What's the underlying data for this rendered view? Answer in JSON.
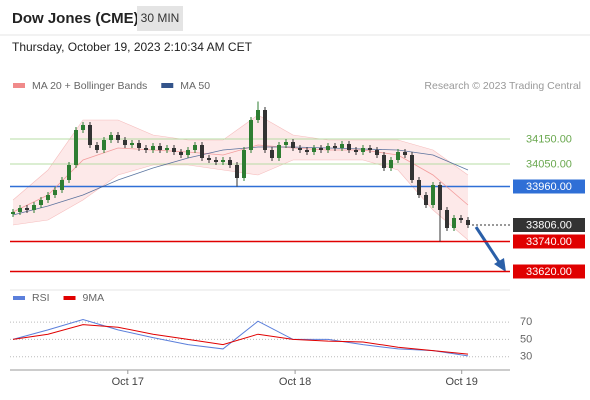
{
  "header": {
    "title": "Dow Jones (CME)",
    "timeframe": "30 MIN",
    "timestamp": "Thursday, October 19, 2023 2:10:34 AM CET"
  },
  "chart_data": [
    {
      "type": "candlestick",
      "source": "Research © 2023 Trading Central",
      "xlim": [
        0,
        71
      ],
      "ylim": [
        33570,
        34310
      ],
      "xticks": [
        {
          "value": 16.4,
          "label": "Oct 17"
        },
        {
          "value": 40.3,
          "label": "Oct 18"
        },
        {
          "value": 64.1,
          "label": "Oct 19"
        }
      ],
      "candles": {
        "up_color": "#2e7d32",
        "down_color": "#333333",
        "x": [
          0,
          1,
          2,
          3,
          4,
          5,
          6,
          7,
          8,
          9,
          10,
          11,
          12,
          13,
          14,
          15,
          16,
          17,
          18,
          19,
          20,
          21,
          22,
          23,
          24,
          25,
          26,
          27,
          28,
          29,
          30,
          31,
          32,
          33,
          34,
          35,
          36,
          37,
          38,
          39,
          40,
          41,
          42,
          43,
          44,
          45,
          46,
          47,
          48,
          49,
          50,
          51,
          52,
          53,
          54,
          55,
          56,
          57,
          58,
          59,
          60,
          61,
          62,
          63,
          64,
          65
        ],
        "open": [
          33850,
          33858,
          33874,
          33866,
          33886,
          33906,
          33926,
          33946,
          33986,
          34046,
          34186,
          34206,
          34126,
          34106,
          34146,
          34166,
          34146,
          34126,
          34134,
          34114,
          34106,
          34122,
          34106,
          34114,
          34098,
          34086,
          34106,
          34126,
          34074,
          34066,
          34058,
          34066,
          34046,
          33994,
          34106,
          34226,
          34266,
          34106,
          34074,
          34126,
          34138,
          34114,
          34106,
          34098,
          34114,
          34106,
          34122,
          34114,
          34130,
          34106,
          34098,
          34114,
          34106,
          34086,
          34034,
          34066,
          34098,
          34086,
          33986,
          33926,
          33886,
          33966,
          33866,
          33794,
          33834,
          33826
        ],
        "high": [
          33870,
          33886,
          33886,
          33898,
          33918,
          33938,
          33958,
          33998,
          34058,
          34198,
          34218,
          34218,
          34138,
          34158,
          34178,
          34178,
          34158,
          34146,
          34146,
          34126,
          34134,
          34134,
          34126,
          34126,
          34110,
          34118,
          34138,
          34138,
          34086,
          34078,
          34078,
          34078,
          34058,
          34118,
          34238,
          34300,
          34278,
          34118,
          34138,
          34150,
          34150,
          34126,
          34118,
          34126,
          34126,
          34134,
          34134,
          34142,
          34142,
          34118,
          34126,
          34126,
          34118,
          34098,
          34078,
          34110,
          34110,
          34098,
          33998,
          33938,
          33978,
          33978,
          33878,
          33846,
          33846,
          33838
        ],
        "low": [
          33838,
          33846,
          33854,
          33854,
          33874,
          33894,
          33914,
          33934,
          33974,
          34034,
          34174,
          34114,
          34094,
          34094,
          34134,
          34134,
          34114,
          34114,
          34102,
          34094,
          34094,
          34094,
          34094,
          34086,
          34074,
          34074,
          34094,
          34062,
          34054,
          34046,
          34046,
          34034,
          33960,
          33982,
          34094,
          34214,
          34094,
          34062,
          34062,
          34114,
          34102,
          34094,
          34086,
          34086,
          34094,
          34094,
          34102,
          34102,
          34094,
          34086,
          34086,
          34094,
          34074,
          34022,
          34022,
          34054,
          34074,
          33974,
          33914,
          33874,
          33874,
          33740,
          33782,
          33782,
          33814,
          33794
        ],
        "close": [
          33858,
          33874,
          33866,
          33886,
          33906,
          33926,
          33946,
          33986,
          34046,
          34186,
          34206,
          34126,
          34106,
          34146,
          34166,
          34146,
          34126,
          34134,
          34114,
          34106,
          34122,
          34106,
          34114,
          34098,
          34086,
          34106,
          34126,
          34074,
          34066,
          34058,
          34066,
          34046,
          33994,
          34106,
          34226,
          34266,
          34106,
          34074,
          34126,
          34138,
          34114,
          34106,
          34098,
          34114,
          34106,
          34122,
          34114,
          34130,
          34106,
          34098,
          34114,
          34106,
          34086,
          34034,
          34066,
          34098,
          34086,
          33986,
          33926,
          33886,
          33966,
          33866,
          33794,
          33834,
          33826,
          33806
        ]
      },
      "series": [
        {
          "name": "MA 20 + Bollinger Bands",
          "color": "#f08a8a",
          "band_color": "#fde3e3",
          "x": [
            0,
            5,
            10,
            15,
            20,
            25,
            30,
            35,
            40,
            45,
            50,
            55,
            60,
            65
          ],
          "values": [
            33858,
            33926,
            34066,
            34114,
            34106,
            34098,
            34086,
            34126,
            34114,
            34106,
            34106,
            34086,
            34006,
            33886
          ],
          "upper": [
            33906,
            34026,
            34226,
            34226,
            34166,
            34146,
            34146,
            34246,
            34166,
            34146,
            34146,
            34146,
            34106,
            34006
          ],
          "lower": [
            33806,
            33826,
            33906,
            34006,
            34046,
            34046,
            34026,
            34006,
            34066,
            34066,
            34066,
            34026,
            33866,
            33746
          ]
        },
        {
          "name": "MA 50",
          "color": "#34558b",
          "x": [
            0,
            5,
            10,
            15,
            20,
            25,
            30,
            35,
            40,
            45,
            50,
            55,
            60,
            65
          ],
          "values": [
            33846,
            33882,
            33926,
            33986,
            34034,
            34074,
            34106,
            34118,
            34118,
            34114,
            34110,
            34106,
            34086,
            34026
          ]
        }
      ],
      "levels": [
        {
          "value": 34150,
          "label": "34150.00",
          "color": "#b7dca5",
          "text_color": "#6aa84f",
          "boxed": false,
          "dashed": false
        },
        {
          "value": 34050,
          "label": "34050.00",
          "color": "#b7dca5",
          "text_color": "#6aa84f",
          "boxed": false,
          "dashed": false
        },
        {
          "value": 33960,
          "label": "33960.00",
          "color": "#2f6fd6",
          "text_color": "#ffffff",
          "boxed": true,
          "dashed": false
        },
        {
          "value": 33806,
          "label": "33806.00",
          "color": "#333333",
          "text_color": "#ffffff",
          "boxed": true,
          "dashed": true
        },
        {
          "value": 33740,
          "label": "33740.00",
          "color": "#e00000",
          "text_color": "#ffffff",
          "boxed": true,
          "dashed": false
        },
        {
          "value": 33620,
          "label": "33620.00",
          "color": "#e00000",
          "text_color": "#ffffff",
          "boxed": true,
          "dashed": false
        }
      ]
    },
    {
      "type": "line",
      "xlim": [
        0,
        71
      ],
      "ylim": [
        17,
        107
      ],
      "yticks": [
        30,
        50,
        70
      ],
      "series": [
        {
          "name": "RSI",
          "color": "#5b7fdb",
          "x": [
            0,
            5,
            10,
            15,
            20,
            25,
            30,
            35,
            40,
            45,
            50,
            55,
            60,
            65
          ],
          "values": [
            50,
            61,
            73,
            61,
            52,
            44,
            39,
            71,
            50,
            50,
            44,
            39,
            37,
            31
          ]
        },
        {
          "name": "9MA",
          "color": "#e00000",
          "x": [
            0,
            5,
            10,
            15,
            20,
            25,
            30,
            35,
            40,
            45,
            50,
            55,
            60,
            65
          ],
          "values": [
            50,
            56,
            67,
            64,
            56,
            50,
            44,
            56,
            50,
            48,
            47,
            41,
            37,
            33
          ]
        }
      ]
    }
  ]
}
